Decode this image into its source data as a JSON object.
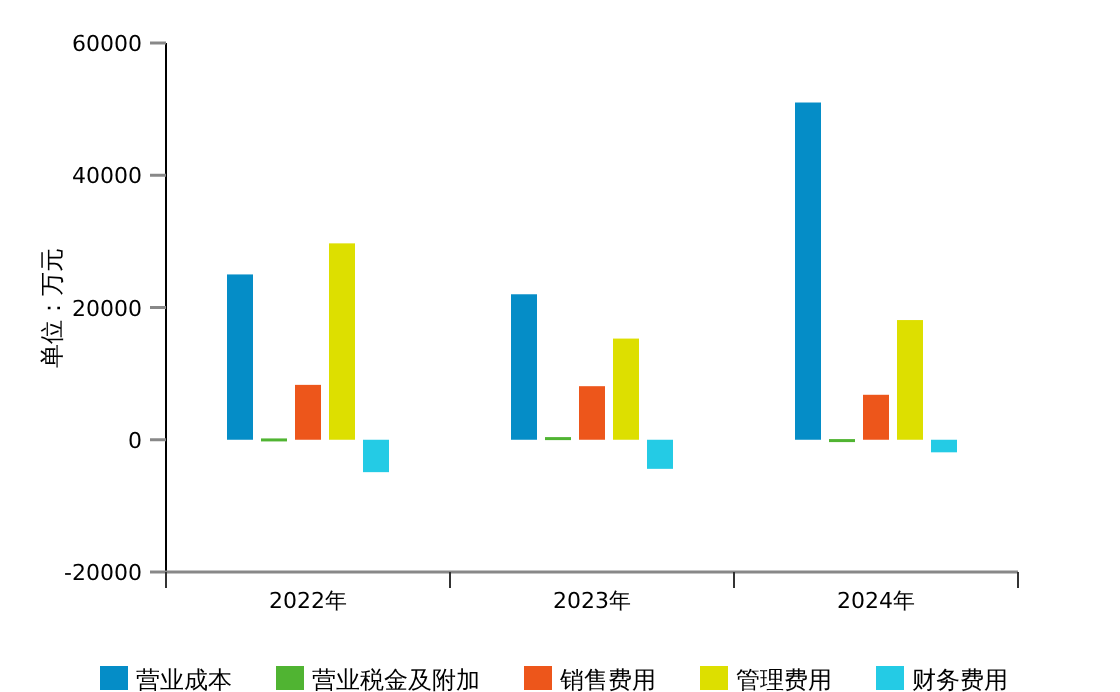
{
  "chart_data": {
    "type": "bar",
    "ylabel": "单位：万元",
    "categories": [
      "2022年",
      "2023年",
      "2024年"
    ],
    "ylim": [
      -20000,
      60000
    ],
    "yticks": [
      -20000,
      0,
      20000,
      40000,
      60000
    ],
    "grid": false,
    "legend": "bottom",
    "series": [
      {
        "name": "营业成本",
        "color": "#058dc7",
        "values": [
          25000,
          22000,
          51000
        ]
      },
      {
        "name": "营业税金及附加",
        "color": "#50b432",
        "values": [
          200,
          400,
          100
        ]
      },
      {
        "name": "销售费用",
        "color": "#ed561b",
        "values": [
          8300,
          8100,
          6800
        ]
      },
      {
        "name": "管理费用",
        "color": "#dddf00",
        "values": [
          29700,
          15300,
          18100
        ]
      },
      {
        "name": "财务费用",
        "color": "#24cbe5",
        "values": [
          -4900,
          -4400,
          -1900
        ]
      }
    ]
  }
}
